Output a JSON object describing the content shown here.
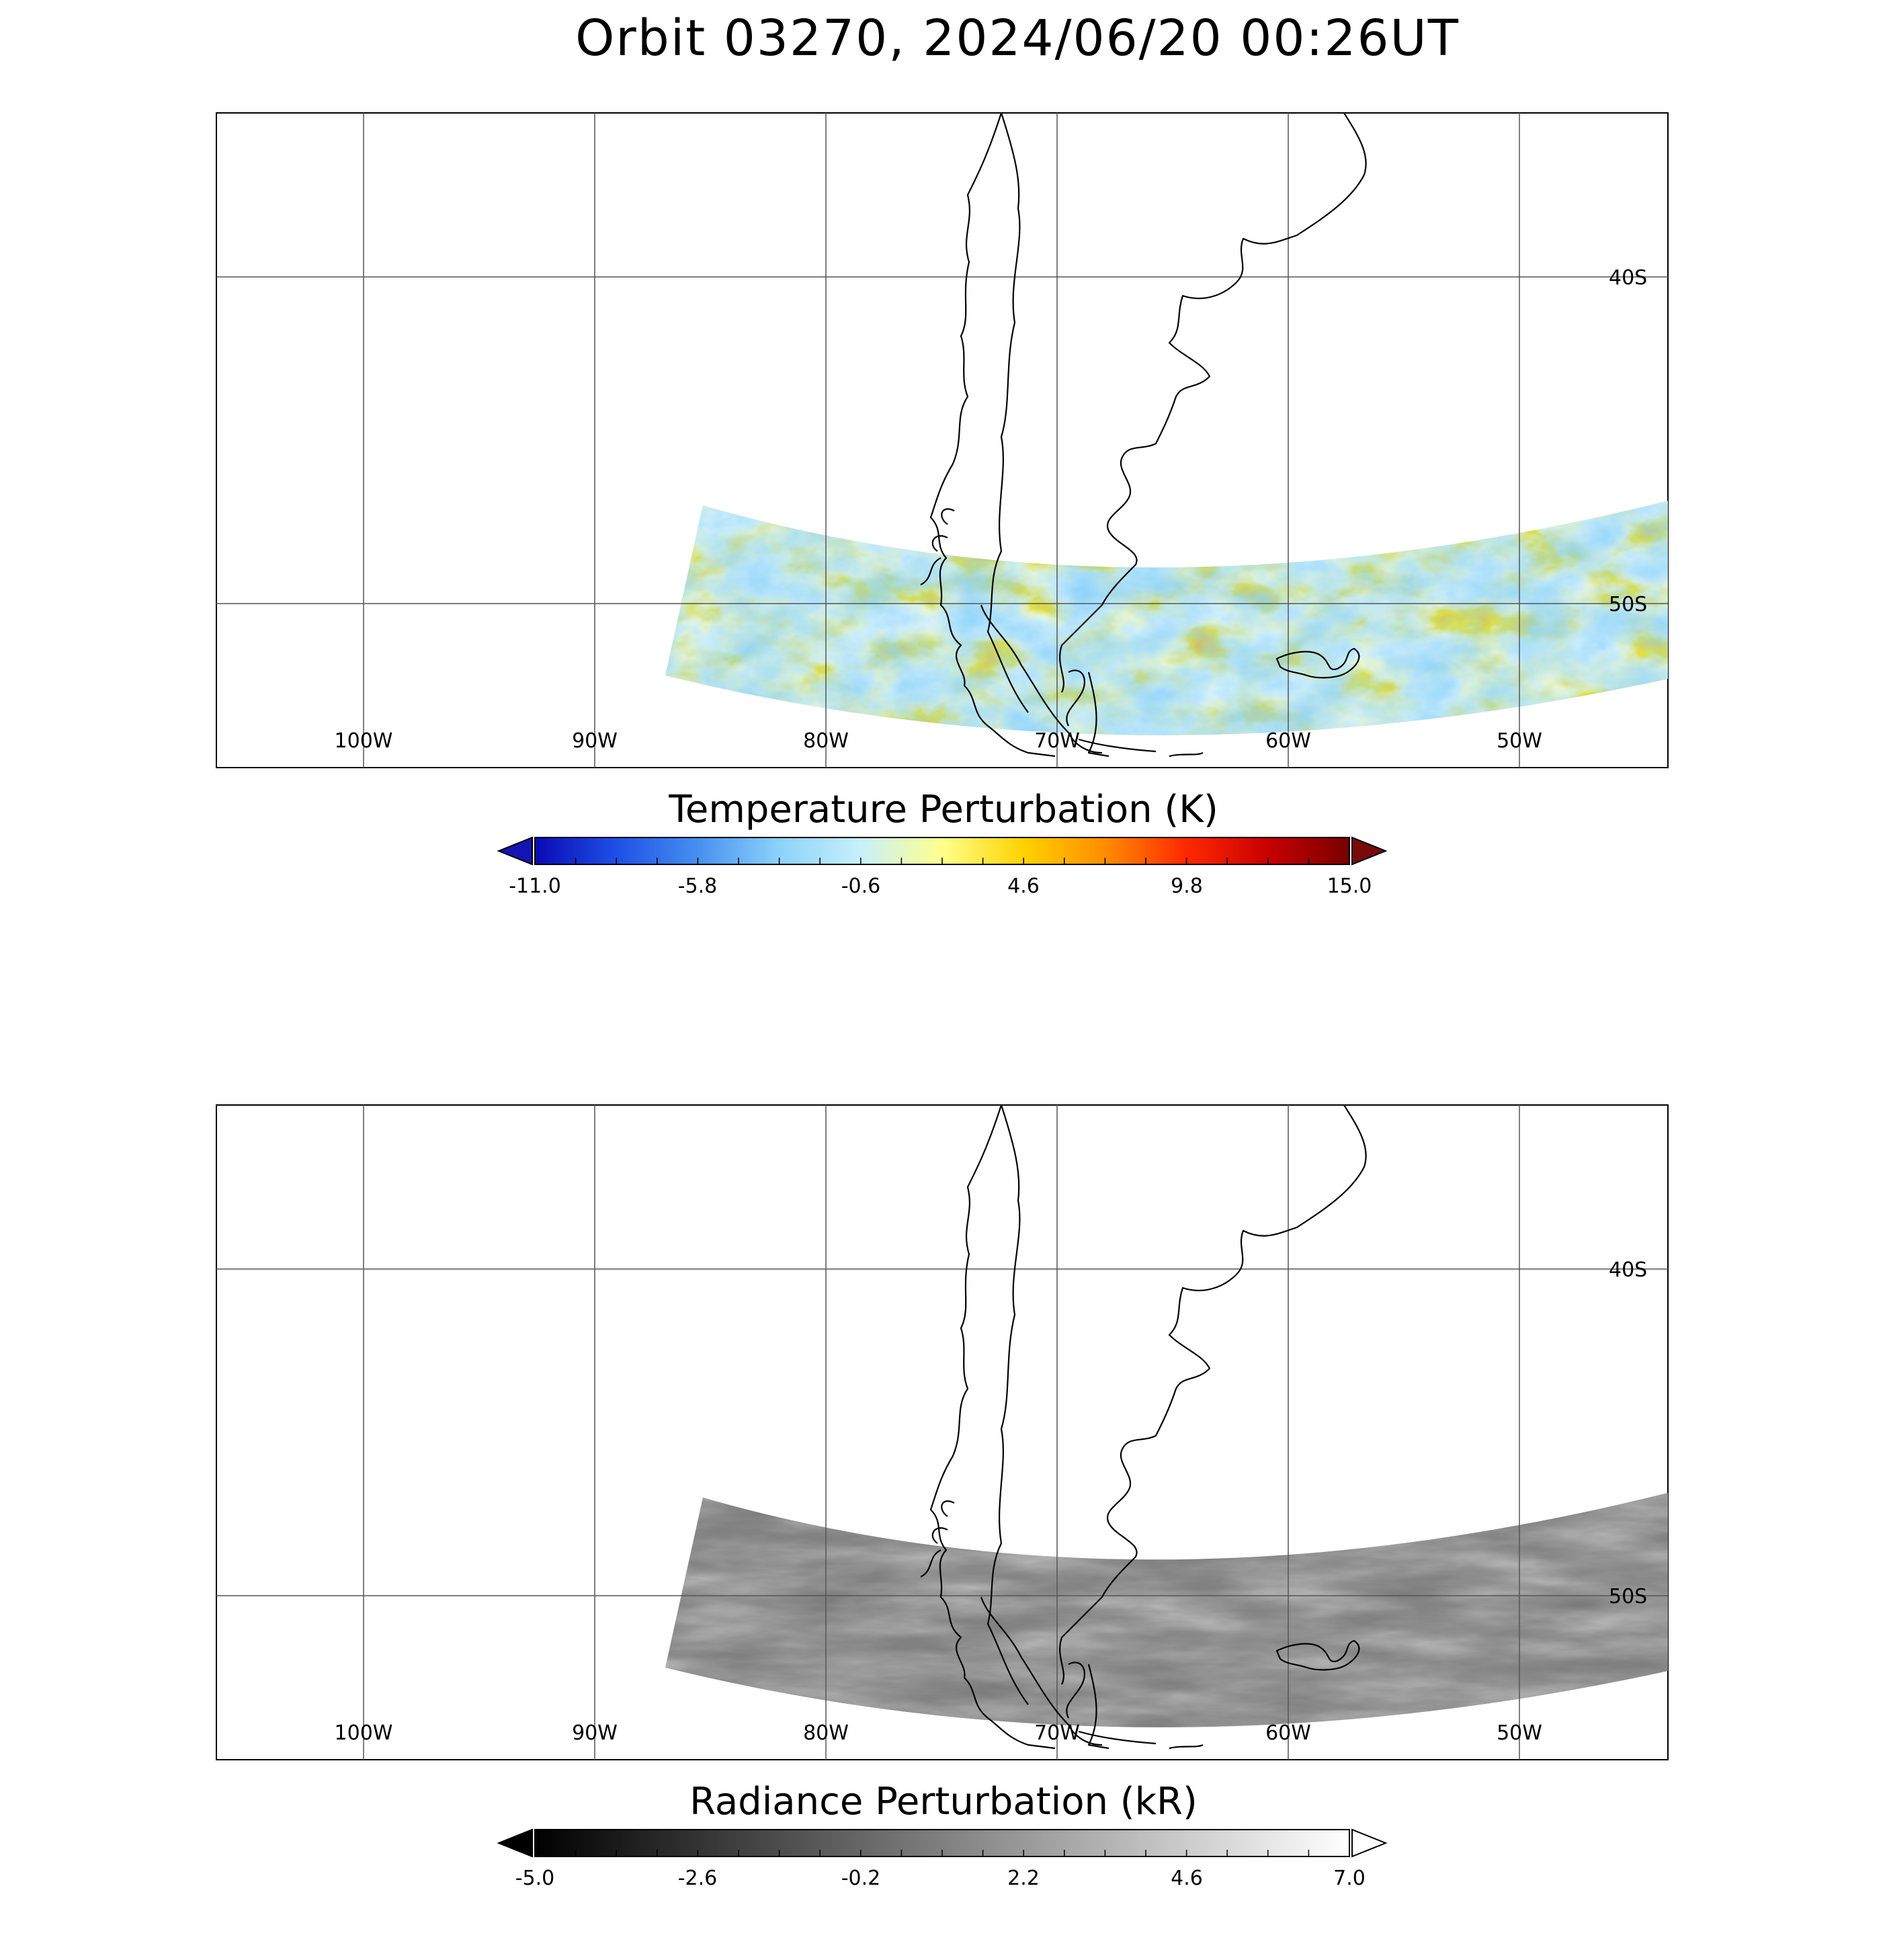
{
  "title": "Orbit 03270, 2024/06/20 00:26UT",
  "grid": {
    "lon_labels": [
      "100W",
      "90W",
      "80W",
      "70W",
      "60W",
      "50W"
    ],
    "lat_labels": [
      "40S",
      "50S"
    ]
  },
  "panels": [
    {
      "id": "temperature",
      "colorbar": {
        "title": "Temperature Perturbation (K)",
        "ticks": [
          "-11.0",
          "-5.8",
          "-0.6",
          "4.6",
          "9.8",
          "15.0"
        ],
        "colors": [
          "#0a0ab4",
          "#1e50e6",
          "#4690f0",
          "#8cd2fa",
          "#c8f0fa",
          "#ffff8c",
          "#ffd200",
          "#ff8c00",
          "#ff2800",
          "#c80000",
          "#780000"
        ],
        "under_color": "#1414b4",
        "over_color": "#780a0a"
      }
    },
    {
      "id": "radiance",
      "colorbar": {
        "title": "Radiance Perturbation (kR)",
        "ticks": [
          "-5.0",
          "-2.6",
          "-0.2",
          "2.2",
          "4.6",
          "7.0"
        ],
        "colors": [
          "#000000",
          "#ffffff"
        ],
        "under_color": "#000000",
        "over_color": "#ffffff"
      }
    }
  ]
}
